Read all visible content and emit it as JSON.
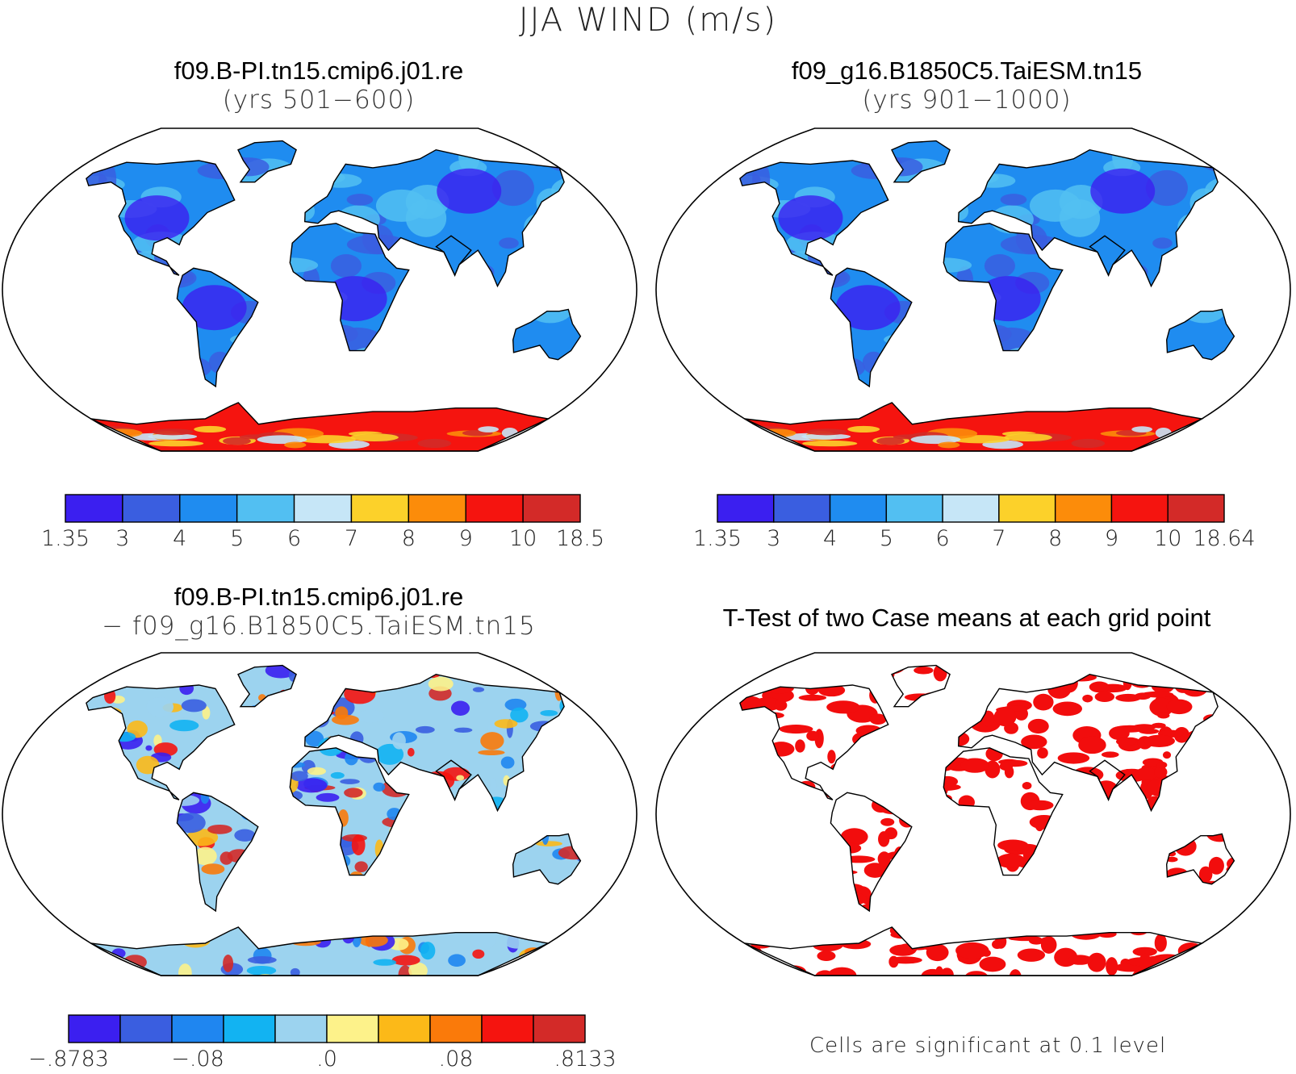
{
  "figure": {
    "title": "JJA WIND (m/s)"
  },
  "panels": {
    "top_left": {
      "title": "f09.B-PI.tn15.cmip6.j01.re",
      "subtitle": "(yrs 501−600)"
    },
    "top_right": {
      "title": "f09_g16.B1850C5.TaiESM.tn15",
      "subtitle": "(yrs 901−1000)"
    },
    "bottom_left": {
      "title": "f09.B-PI.tn15.cmip6.j01.re",
      "subtitle": "− f09_g16.B1850C5.TaiESM.tn15"
    },
    "bottom_right": {
      "title": "T-Test of two Case means at each grid point",
      "note": "Cells are significant at 0.1 level"
    }
  },
  "colors": {
    "wind_levels": [
      "#3b1ff0",
      "#3a5ee0",
      "#1f8cf0",
      "#52bff2",
      "#c6e6f7",
      "#fcd12a",
      "#fc8c0a",
      "#f5140f",
      "#d32a28"
    ],
    "diff_levels": [
      "#3b1ff0",
      "#3a5ee0",
      "#1f86f0",
      "#12b3f2",
      "#9cd3ef",
      "#fdf28a",
      "#fcb918",
      "#fa7a0a",
      "#f5140f",
      "#d32a28"
    ],
    "significant": "#f20d0d"
  },
  "chart_data": [
    {
      "type": "heatmap",
      "panel": "top_left",
      "title": "f09.B-PI.tn15.cmip6.j01.re",
      "subtitle": "(yrs 501−600)",
      "colorbar_labels": [
        "1.35",
        "3",
        "4",
        "5",
        "6",
        "7",
        "8",
        "9",
        "10",
        "18.5"
      ],
      "colorbar_bounds": [
        1.35,
        3,
        4,
        5,
        6,
        7,
        8,
        9,
        10,
        18.5
      ]
    },
    {
      "type": "heatmap",
      "panel": "top_right",
      "title": "f09_g16.B1850C5.TaiESM.tn15",
      "subtitle": "(yrs 901−1000)",
      "colorbar_labels": [
        "1.35",
        "3",
        "4",
        "5",
        "6",
        "7",
        "8",
        "9",
        "10",
        "18.64"
      ],
      "colorbar_bounds": [
        1.35,
        3,
        4,
        5,
        6,
        7,
        8,
        9,
        10,
        18.64
      ]
    },
    {
      "type": "heatmap",
      "panel": "bottom_left",
      "title": "f09.B-PI.tn15.cmip6.j01.re",
      "subtitle": "− f09_g16.B1850C5.TaiESM.tn15",
      "colorbar_labels": [
        "−.8783",
        "−.08",
        ".0",
        ".08",
        ".8133"
      ],
      "colorbar_bounds": [
        -0.8783,
        -0.08,
        0.0,
        0.08,
        0.8133
      ]
    },
    {
      "type": "heatmap",
      "panel": "bottom_right",
      "title": "T-Test of two Case means at each grid point",
      "note": "Cells are significant at 0.1 level"
    }
  ]
}
